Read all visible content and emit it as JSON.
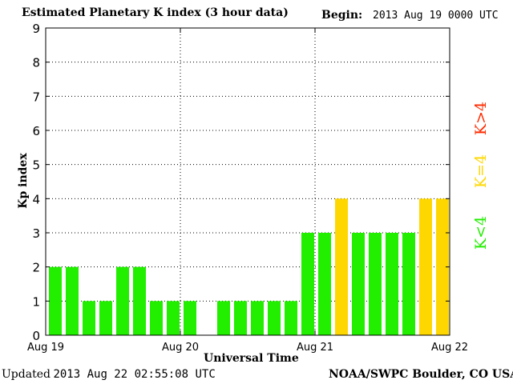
{
  "header": {
    "title": "Estimated Planetary K index (3 hour data)",
    "begin_label": "Begin:",
    "begin_value": "2013 Aug 19 0000 UTC"
  },
  "footer": {
    "updated_label": "Updated",
    "updated_value": "2013 Aug 22 02:55:08 UTC",
    "source": "NOAA/SWPC Boulder, CO USA"
  },
  "legend": {
    "high": {
      "label": "K>4",
      "color": "#ff2a00"
    },
    "mid": {
      "label": "K=4",
      "color": "#ffd700"
    },
    "low": {
      "label": "K<4",
      "color": "#22ee00"
    }
  },
  "chart_data": {
    "type": "bar",
    "title": "Estimated Planetary K index (3 hour data)",
    "xlabel": "Universal Time",
    "ylabel": "Kp index",
    "ylim": [
      0,
      9
    ],
    "yticks": [
      "0",
      "1",
      "2",
      "3",
      "4",
      "5",
      "6",
      "7",
      "8",
      "9"
    ],
    "xticks": [
      "Aug 19",
      "Aug 20",
      "Aug 21",
      "Aug 22"
    ],
    "categories": [
      "Aug 19 00",
      "Aug 19 03",
      "Aug 19 06",
      "Aug 19 09",
      "Aug 19 12",
      "Aug 19 15",
      "Aug 19 18",
      "Aug 19 21",
      "Aug 20 00",
      "Aug 20 03",
      "Aug 20 06",
      "Aug 20 09",
      "Aug 20 12",
      "Aug 20 15",
      "Aug 20 18",
      "Aug 20 21",
      "Aug 21 00",
      "Aug 21 03",
      "Aug 21 06",
      "Aug 21 09",
      "Aug 21 12",
      "Aug 21 15",
      "Aug 21 18",
      "Aug 21 21"
    ],
    "values": [
      2,
      2,
      1,
      1,
      2,
      2,
      1,
      1,
      1,
      0,
      1,
      1,
      1,
      1,
      1,
      3,
      3,
      4,
      3,
      3,
      3,
      3,
      4,
      4
    ],
    "grid": true,
    "colors": {
      "below4": "#22ee00",
      "equal4": "#ffd700",
      "above4": "#ff2a00"
    }
  }
}
